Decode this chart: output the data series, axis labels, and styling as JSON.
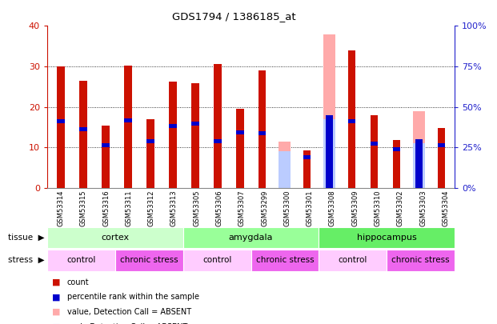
{
  "title": "GDS1794 / 1386185_at",
  "samples": [
    "GSM53314",
    "GSM53315",
    "GSM53316",
    "GSM53311",
    "GSM53312",
    "GSM53313",
    "GSM53305",
    "GSM53306",
    "GSM53307",
    "GSM53299",
    "GSM53300",
    "GSM53301",
    "GSM53308",
    "GSM53309",
    "GSM53310",
    "GSM53302",
    "GSM53303",
    "GSM53304"
  ],
  "count_values": [
    30.0,
    26.5,
    15.3,
    30.2,
    17.0,
    26.2,
    25.8,
    30.5,
    19.5,
    29.0,
    null,
    9.3,
    null,
    34.0,
    18.0,
    11.8,
    null,
    14.7
  ],
  "percentile_values": [
    16.0,
    14.0,
    10.0,
    16.2,
    11.0,
    14.8,
    15.3,
    11.0,
    13.3,
    13.0,
    null,
    7.0,
    17.0,
    16.0,
    10.5,
    9.0,
    11.0,
    10.0
  ],
  "absent_value": [
    null,
    null,
    null,
    null,
    null,
    null,
    null,
    null,
    null,
    null,
    11.5,
    null,
    38.0,
    null,
    null,
    null,
    19.0,
    null
  ],
  "absent_rank": [
    null,
    null,
    null,
    null,
    null,
    null,
    null,
    null,
    null,
    null,
    9.0,
    null,
    17.0,
    null,
    null,
    null,
    11.0,
    null
  ],
  "tissue_groups": [
    {
      "label": "cortex",
      "start": 0,
      "end": 5,
      "color": "#ccffcc"
    },
    {
      "label": "amygdala",
      "start": 6,
      "end": 11,
      "color": "#99ff99"
    },
    {
      "label": "hippocampus",
      "start": 12,
      "end": 17,
      "color": "#66ee66"
    }
  ],
  "stress_groups": [
    {
      "label": "control",
      "start": 0,
      "end": 2,
      "color": "#ffccff"
    },
    {
      "label": "chronic stress",
      "start": 3,
      "end": 5,
      "color": "#ee66ee"
    },
    {
      "label": "control",
      "start": 6,
      "end": 8,
      "color": "#ffccff"
    },
    {
      "label": "chronic stress",
      "start": 9,
      "end": 11,
      "color": "#ee66ee"
    },
    {
      "label": "control",
      "start": 12,
      "end": 14,
      "color": "#ffccff"
    },
    {
      "label": "chronic stress",
      "start": 15,
      "end": 17,
      "color": "#ee66ee"
    }
  ],
  "ylim_left": [
    0,
    40
  ],
  "ylim_right": [
    0,
    100
  ],
  "yticks_left": [
    0,
    10,
    20,
    30,
    40
  ],
  "yticks_right": [
    0,
    25,
    50,
    75,
    100
  ],
  "count_color": "#cc1100",
  "percentile_color": "#0000cc",
  "absent_value_color": "#ffaaaa",
  "absent_rank_color": "#bbccff",
  "bg_color": "#ffffff",
  "count_bar_width": 0.35,
  "absent_bar_width": 0.55,
  "percentile_bar_height": 1.0,
  "axis_color_left": "#cc1100",
  "axis_color_right": "#2222cc",
  "xticklabel_area_color": "#dddddd",
  "grid_color": "#000000"
}
